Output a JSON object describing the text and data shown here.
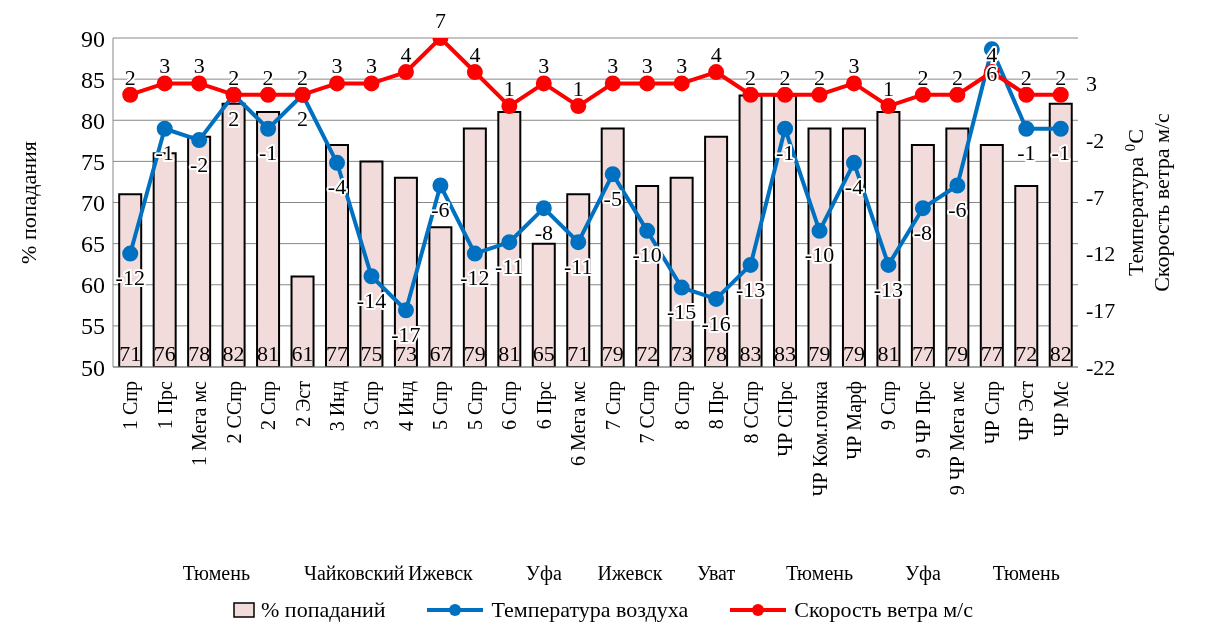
{
  "chart_data": {
    "type": "bar",
    "categories": [
      "1 Спр",
      "1 Прс",
      "1 Мега мс",
      "2 ССпр",
      "2 Спр",
      "2 Эст",
      "3 Инд",
      "3 Спр",
      "4 Инд",
      "5 Спр",
      "5 Спр",
      "6 Спр",
      "6 Прс",
      "6 Мега мс",
      "7 Спр",
      "7 ССпр",
      "8 Спр",
      "8 Прс",
      "8 ССпр",
      "ЧР СПрс",
      "ЧР Ком.гонка",
      "ЧР Марф",
      "9 Спр",
      "9 ЧР Прс",
      "9 ЧР Мега мс",
      "ЧР Спр",
      "ЧР Эст",
      "ЧР Мс"
    ],
    "series": [
      {
        "name": "% попаданий",
        "color": "#f2dcdb",
        "values": [
          71,
          76,
          78,
          82,
          81,
          61,
          77,
          75,
          73,
          67,
          79,
          81,
          65,
          71,
          79,
          72,
          73,
          78,
          83,
          83,
          79,
          79,
          81,
          77,
          79,
          77,
          72,
          82
        ]
      },
      {
        "name": "Температура воздуха",
        "type": "line",
        "axis": "y2",
        "color": "#0070c0",
        "values": [
          -12,
          -1,
          -2,
          2,
          -1,
          2,
          -4,
          -14,
          -17,
          -6,
          -12,
          -11,
          -8,
          -11,
          -5,
          -10,
          -15,
          -16,
          -13,
          -1,
          -10,
          -4,
          -13,
          -8,
          -6,
          6,
          -1,
          -1
        ]
      },
      {
        "name": "Скорость ветра м/с",
        "type": "line",
        "axis": "y2",
        "color": "#ff0000",
        "values": [
          2,
          3,
          3,
          2,
          2,
          2,
          3,
          3,
          4,
          7,
          4,
          1,
          3,
          1,
          3,
          3,
          3,
          4,
          2,
          2,
          2,
          3,
          1,
          2,
          2,
          4,
          2,
          2
        ]
      }
    ],
    "ylabel": "% попадания",
    "y2label": "Температура $^{0}$С\nСкорость ветра м/с",
    "ylim": [
      50,
      90
    ],
    "yticks": [
      50,
      55,
      60,
      65,
      70,
      75,
      80,
      85,
      90
    ],
    "y2lim": [
      -22,
      7
    ],
    "y2ticks": [
      -22,
      -17,
      -12,
      -7,
      -2,
      3
    ],
    "annotations": [
      "Тюмень",
      "Чайковский",
      "Ижевск",
      "Уфа",
      "Ижевск",
      "Уват",
      "Тюмень",
      "Уфа",
      "Тюмень"
    ],
    "data_labels": true,
    "grid": "y",
    "legend": "bottom",
    "marker": "circle",
    "line_style": "solid"
  }
}
